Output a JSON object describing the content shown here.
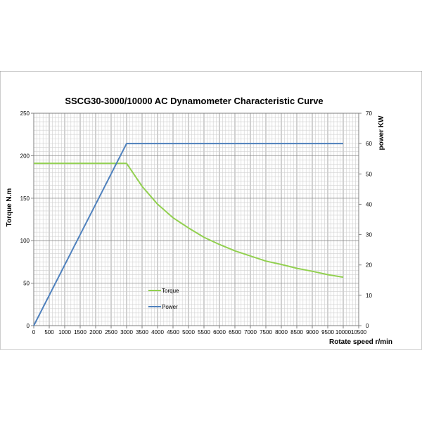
{
  "chart_data": {
    "type": "line",
    "title": "SSCG30-3000/10000  AC Dynamometer Characteristic Curve",
    "xlabel": "Rotate speed r/min",
    "ylabel_left": "Torque N.m",
    "ylabel_right": "power KW",
    "xlim": [
      0,
      10500
    ],
    "ylim_left": [
      0,
      250
    ],
    "ylim_right": [
      0,
      70
    ],
    "x_ticks": [
      0,
      500,
      1000,
      1500,
      2000,
      2500,
      3000,
      3500,
      4000,
      4500,
      5000,
      5500,
      6000,
      6500,
      7000,
      7500,
      8000,
      8500,
      9000,
      9500,
      10000,
      10500
    ],
    "y_left_ticks": [
      0,
      50,
      100,
      150,
      200,
      250
    ],
    "y_right_ticks": [
      0,
      10,
      20,
      30,
      40,
      50,
      60,
      70
    ],
    "grid": true,
    "legend_position": "inside-lower-middle",
    "series": [
      {
        "name": "Torque",
        "axis": "left",
        "color": "#92d050",
        "x": [
          0,
          3000,
          3500,
          4000,
          4500,
          5000,
          5500,
          6000,
          6500,
          7000,
          7500,
          8000,
          8500,
          9000,
          9500,
          10000
        ],
        "values": [
          191,
          191,
          164,
          143,
          127,
          115,
          104,
          95.5,
          88,
          82,
          76,
          72,
          67.5,
          64,
          60,
          57
        ]
      },
      {
        "name": "Power",
        "axis": "right",
        "color": "#4f81bd",
        "x": [
          0,
          3000,
          10000
        ],
        "values": [
          0,
          60,
          60
        ]
      }
    ]
  }
}
